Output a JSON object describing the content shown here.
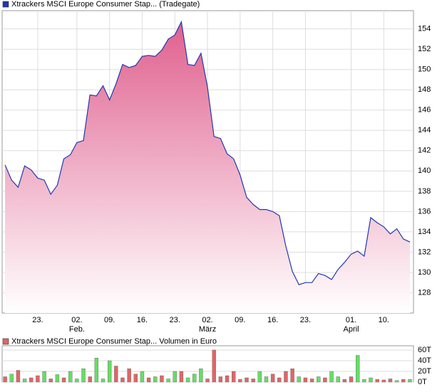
{
  "chart_data": [
    {
      "type": "area",
      "series": [
        {
          "name": "Xtrackers MSCI Europe Consumer Stap... (Tradegate)",
          "color": "#2038b0",
          "fill": "#e0608e",
          "values": [
            140.6,
            139.1,
            138.4,
            140.5,
            140.1,
            139.3,
            139.1,
            137.7,
            138.6,
            141.2,
            141.6,
            142.8,
            143.0,
            147.5,
            147.4,
            148.4,
            147.0,
            148.6,
            150.5,
            150.2,
            150.4,
            151.3,
            151.4,
            151.3,
            151.9,
            153.0,
            153.4,
            154.7,
            150.5,
            150.4,
            151.6,
            148.3,
            143.4,
            143.2,
            141.7,
            141.2,
            139.6,
            137.4,
            136.7,
            136.2,
            136.2,
            136.0,
            135.6,
            132.6,
            130.1,
            128.8,
            129.0,
            129.0,
            129.9,
            129.7,
            129.3,
            130.3,
            131.0,
            131.8,
            132.1,
            131.6,
            135.4,
            134.9,
            134.5,
            133.8,
            134.3,
            133.3,
            133.0
          ]
        }
      ],
      "categories": [
        null,
        null,
        null,
        null,
        null,
        "23.",
        null,
        null,
        null,
        null,
        null,
        "02.",
        null,
        null,
        null,
        null,
        "09.",
        null,
        null,
        null,
        null,
        "16.",
        null,
        null,
        null,
        null,
        "23.",
        null,
        null,
        null,
        null,
        "02.",
        null,
        null,
        null,
        null,
        "09.",
        null,
        null,
        null,
        null,
        "16.",
        null,
        null,
        null,
        null,
        "23.",
        null,
        null,
        null,
        null,
        null,
        null,
        "01.",
        null,
        null,
        null,
        null,
        "10.",
        null,
        null,
        null,
        null
      ],
      "months": [
        null,
        null,
        null,
        null,
        null,
        null,
        null,
        null,
        null,
        null,
        null,
        "Feb.",
        null,
        null,
        null,
        null,
        null,
        null,
        null,
        null,
        null,
        null,
        null,
        null,
        null,
        null,
        null,
        null,
        null,
        null,
        null,
        "März",
        null,
        null,
        null,
        null,
        null,
        null,
        null,
        null,
        null,
        null,
        null,
        null,
        null,
        null,
        null,
        null,
        null,
        null,
        null,
        null,
        null,
        "April",
        null,
        null,
        null,
        null,
        null,
        null,
        null,
        null,
        null
      ],
      "ylim": [
        126,
        155.8
      ],
      "yticks": [
        128,
        130,
        132,
        134,
        136,
        138,
        140,
        142,
        144,
        146,
        148,
        150,
        152,
        154
      ],
      "grid": true
    },
    {
      "type": "bar",
      "series": [
        {
          "name": "Xtrackers MSCI Europe Consumer Stap... Volumen in Euro",
          "color": "#e06666",
          "values": [
            10,
            15,
            22,
            6,
            8,
            12,
            20,
            6,
            14,
            8,
            20,
            6,
            25,
            10,
            45,
            6,
            40,
            30,
            8,
            25,
            15,
            20,
            8,
            10,
            12,
            6,
            20,
            20,
            8,
            15,
            25,
            6,
            60,
            10,
            12,
            20,
            5,
            8,
            6,
            20,
            10,
            15,
            8,
            20,
            25,
            10,
            8,
            6,
            10,
            8,
            20,
            10,
            5,
            10,
            50,
            5,
            8,
            5,
            4,
            6,
            3,
            5,
            5
          ],
          "colors": [
            "#e06666",
            "#66dd66",
            "#e06666",
            "#66dd66",
            "#e06666",
            "#e06666",
            "#66dd66",
            "#e06666",
            "#66dd66",
            "#e06666",
            "#66dd66",
            "#66dd66",
            "#66dd66",
            "#e06666",
            "#66dd66",
            "#66dd66",
            "#66dd66",
            "#e06666",
            "#e06666",
            "#e06666",
            "#e06666",
            "#66dd66",
            "#e06666",
            "#66dd66",
            "#e06666",
            "#66dd66",
            "#66dd66",
            "#e06666",
            "#66dd66",
            "#66dd66",
            "#66dd66",
            "#e06666",
            "#e06666",
            "#e06666",
            "#e06666",
            "#e06666",
            "#e06666",
            "#e06666",
            "#e06666",
            "#66dd66",
            "#66dd66",
            "#e06666",
            "#e06666",
            "#e06666",
            "#e06666",
            "#66dd66",
            "#e06666",
            "#e06666",
            "#66dd66",
            "#e06666",
            "#66dd66",
            "#66dd66",
            "#e06666",
            "#e06666",
            "#66dd66",
            "#66dd66",
            "#66dd66",
            "#e06666",
            "#e06666",
            "#e06666",
            "#66dd66",
            "#e06666",
            "#66dd66"
          ]
        }
      ],
      "ylim": [
        0,
        68
      ],
      "yticks": [
        {
          "value": 0,
          "label": "0T"
        },
        {
          "value": 20,
          "label": "20T"
        },
        {
          "value": 40,
          "label": "40T"
        },
        {
          "value": 60,
          "label": "60T"
        }
      ],
      "grid": true
    }
  ]
}
